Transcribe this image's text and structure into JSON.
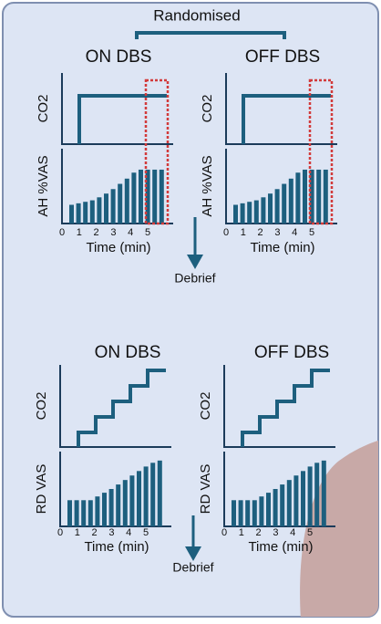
{
  "header": {
    "title": "Randomised"
  },
  "sections": [
    {
      "panels": [
        {
          "title": "ON DBS",
          "top_label": "CO2",
          "bottom_label": "AH %VAS",
          "x_ticks": [
            "0",
            "1",
            "2",
            "3",
            "4",
            "5"
          ],
          "x_label": "Time (min)"
        },
        {
          "title": "OFF DBS",
          "top_label": "CO2",
          "bottom_label": "AH %VAS",
          "x_ticks": [
            "0",
            "1",
            "2",
            "3",
            "4",
            "5"
          ],
          "x_label": "Time (min)"
        }
      ],
      "arrow_label": "Debrief"
    },
    {
      "panels": [
        {
          "title": "ON DBS",
          "top_label": "CO2",
          "bottom_label": "RD VAS",
          "x_ticks": [
            "0",
            "1",
            "2",
            "3",
            "4",
            "5"
          ],
          "x_label": "Time (min)"
        },
        {
          "title": "OFF DBS",
          "top_label": "CO2",
          "bottom_label": "RD VAS",
          "x_ticks": [
            "0",
            "1",
            "2",
            "3",
            "4",
            "5"
          ],
          "x_label": "Time (min)"
        }
      ],
      "arrow_label": "Debrief"
    }
  ]
}
